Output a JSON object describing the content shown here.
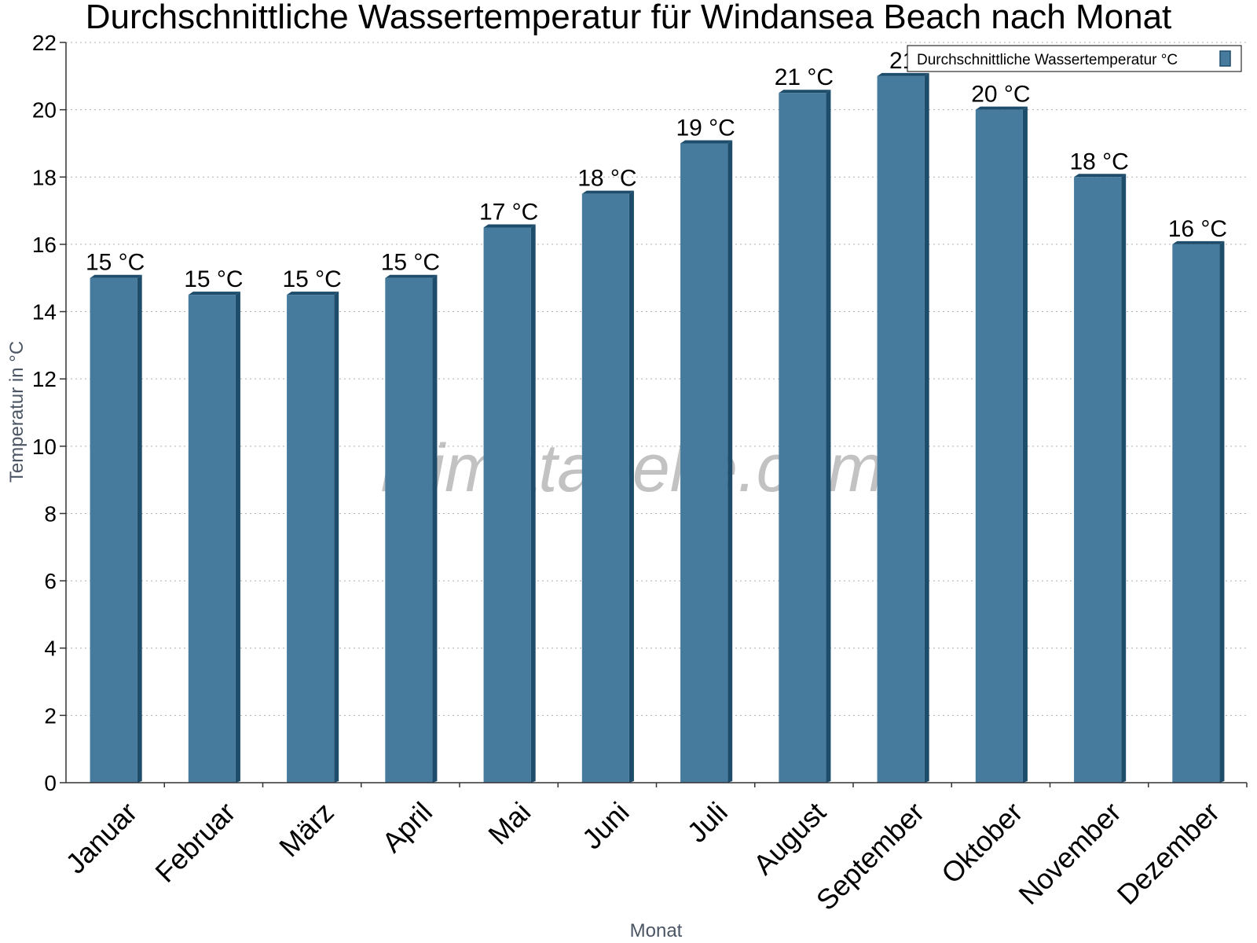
{
  "watermark": "klimatabelle.com",
  "colors": {
    "bar": "#467b9e",
    "bar_dark": "#1e4c6b",
    "grid": "#b0b0b0",
    "axis": "#333333"
  },
  "chart_data": {
    "type": "bar",
    "title": "Durchschnittliche Wassertemperatur für Windansea Beach nach Monat",
    "xlabel": "Monat",
    "ylabel": "Temperatur in °C",
    "ylim": [
      0,
      22
    ],
    "yticks": [
      0,
      2,
      4,
      6,
      8,
      10,
      12,
      14,
      16,
      18,
      20,
      22
    ],
    "grid": true,
    "legend_position": "top-right",
    "categories": [
      "Januar",
      "Februar",
      "März",
      "April",
      "Mai",
      "Juni",
      "Juli",
      "August",
      "September",
      "Oktober",
      "November",
      "Dezember"
    ],
    "series": [
      {
        "name": "Durchschnittliche Wassertemperatur °C",
        "values": [
          15.0,
          14.5,
          14.5,
          15.0,
          16.5,
          17.5,
          19.0,
          20.5,
          21.0,
          20.0,
          18.0,
          16.0
        ],
        "labels": [
          "15 °C",
          "15 °C",
          "15 °C",
          "15 °C",
          "17 °C",
          "18 °C",
          "19 °C",
          "21 °C",
          "21",
          "20 °C",
          "18 °C",
          "16 °C"
        ]
      }
    ]
  }
}
